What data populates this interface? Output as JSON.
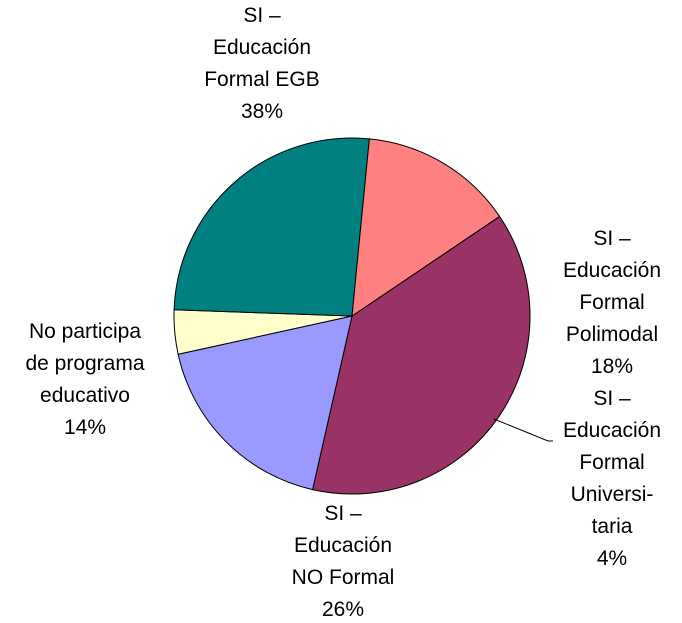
{
  "chart_data": {
    "type": "pie",
    "categories": [
      "SI –\nEducación\nFormal EGB",
      "SI –\nEducación\nFormal\nPolimodal",
      "SI –\nEducación\nFormal\nUniversi-\ntaria",
      "SI –\nEducación\nNO Formal",
      "No participa\nde programa\neducativo"
    ],
    "values": [
      38,
      18,
      4,
      26,
      14
    ],
    "value_labels": [
      "38%",
      "18%",
      "4%",
      "26%",
      "14%"
    ],
    "colors": [
      "#993366",
      "#9999ff",
      "#ffffcc",
      "#008080",
      "#ff8080"
    ]
  }
}
